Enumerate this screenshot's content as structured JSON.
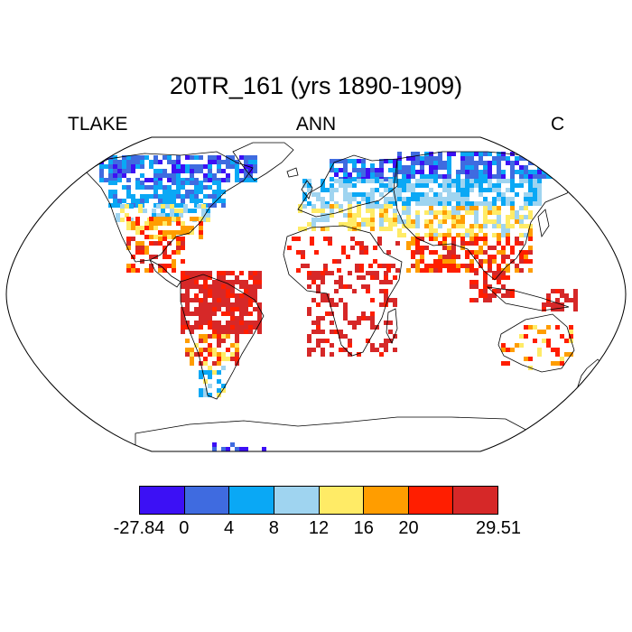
{
  "title": "20TR_161 (yrs 1890-1909)",
  "left_string": "TLAKE",
  "center_string": "ANN",
  "right_string": "C",
  "colorbar": {
    "colors": [
      "#3c10f5",
      "#3f6be0",
      "#0aa8f5",
      "#9fd4f0",
      "#ffeb66",
      "#ff9d00",
      "#ff1e00",
      "#d62828"
    ],
    "labels": [
      "-27.84",
      "0",
      "4",
      "8",
      "12",
      "16",
      "20",
      "29.51"
    ],
    "label_positions": [
      0,
      1,
      2,
      3,
      4,
      5,
      6,
      8
    ]
  }
}
